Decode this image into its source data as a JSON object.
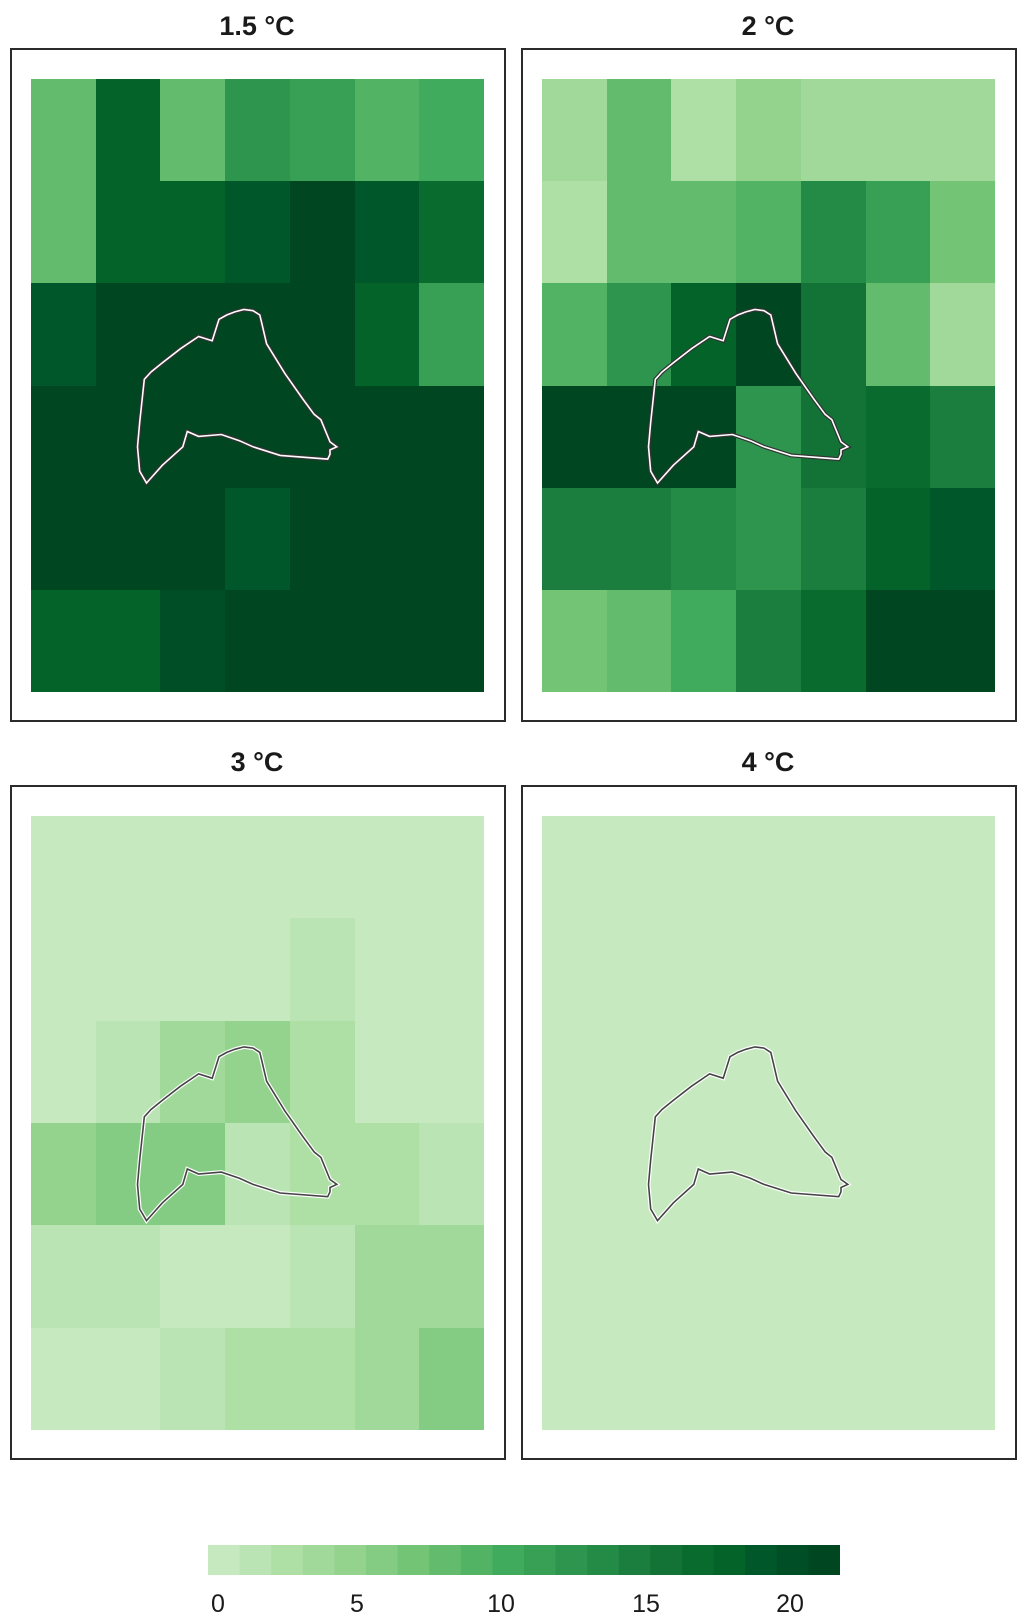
{
  "panels": [
    {
      "title": "1.5 °C",
      "grid": [
        [
          8,
          19,
          8,
          13,
          12,
          9,
          10
        ],
        [
          8,
          19,
          19,
          20,
          22,
          20,
          17
        ],
        [
          20,
          22,
          22,
          22,
          22,
          18,
          12
        ],
        [
          22,
          22,
          22,
          22,
          22,
          22,
          22
        ],
        [
          22,
          22,
          22,
          20,
          22,
          22,
          22
        ],
        [
          18,
          18,
          21,
          22,
          22,
          22,
          22
        ]
      ]
    },
    {
      "title": "2 °C",
      "grid": [
        [
          3,
          8,
          2,
          5,
          4,
          3,
          4
        ],
        [
          2,
          8,
          8,
          9,
          14,
          11,
          7
        ],
        [
          9,
          13,
          18,
          22,
          16,
          8,
          4
        ],
        [
          22,
          22,
          22,
          13,
          16,
          17,
          15
        ],
        [
          15,
          15,
          14,
          13,
          15,
          18,
          20
        ],
        [
          7,
          8,
          10,
          15,
          17,
          22,
          22
        ]
      ]
    },
    {
      "title": "3 °C",
      "grid": [
        [
          0,
          0,
          0,
          0,
          0,
          0,
          0
        ],
        [
          0,
          0,
          0,
          0,
          1,
          0,
          0
        ],
        [
          0,
          1,
          3,
          5,
          2,
          0,
          0
        ],
        [
          5,
          6,
          6,
          1,
          2,
          2,
          1
        ],
        [
          1,
          1,
          0,
          0,
          1,
          3,
          4
        ],
        [
          0,
          0,
          1,
          2,
          2,
          4,
          6
        ]
      ]
    },
    {
      "title": "4 °C",
      "grid": [
        [
          0,
          0,
          0,
          0,
          0,
          0,
          0
        ],
        [
          0,
          0,
          0,
          0,
          0,
          0,
          0
        ],
        [
          0,
          0,
          0,
          0,
          0,
          0,
          0
        ],
        [
          0,
          0,
          0,
          0,
          0,
          0,
          0
        ],
        [
          0,
          0,
          0,
          0,
          0,
          0,
          0
        ],
        [
          0,
          0,
          0,
          0,
          0,
          0,
          0
        ]
      ]
    }
  ],
  "legend": {
    "min": 0,
    "max": 22,
    "ticks": [
      {
        "value": 0,
        "label": "0"
      },
      {
        "value": 5,
        "label": "5"
      },
      {
        "value": 10,
        "label": "10"
      },
      {
        "value": 15,
        "label": "15"
      },
      {
        "value": 20,
        "label": "20"
      }
    ],
    "colors": [
      "#c7e9c0",
      "#bae4b3",
      "#aedfa5",
      "#a1d99b",
      "#93d38d",
      "#84cc83",
      "#74c476",
      "#63bb6d",
      "#52b365",
      "#41ab5d",
      "#37a055",
      "#2d954d",
      "#238b45",
      "#1b7e3e",
      "#137236",
      "#0a6b2f",
      "#046329",
      "#00572a",
      "#004e25",
      "#004621"
    ]
  },
  "colors": {
    "outline_on_dark": "#ffffff",
    "outline_on_light": "#444444",
    "frame": "#2b2b2b"
  }
}
